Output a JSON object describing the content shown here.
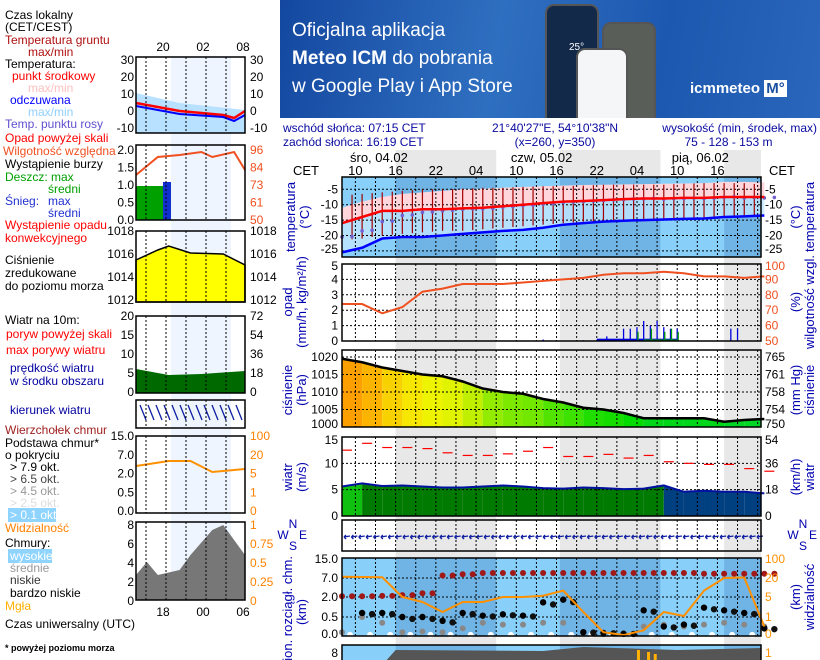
{
  "banner": {
    "line1": "Oficjalna aplikacja",
    "line2_bold": "Meteo ICM",
    "line2_rest": " do pobrania",
    "line3": "w Google Play i App Store",
    "logo_text": "icmmeteo",
    "logo_badge": "M°",
    "phone_temp": "25°"
  },
  "info": {
    "sunrise": "wschód słońca: 07:15 CET",
    "sunset": "zachód słońca: 16:19 CET",
    "coords": "21°40'27\"E, 54°10'38\"N",
    "grid": "(x=260,  y=350)",
    "elev_label": "wysokość (min, środek, max)",
    "elev_values": "75 - 128 - 153 m"
  },
  "time_axis": {
    "tz": "CET",
    "days": [
      "śro, 04.02",
      "czw, 05.02",
      "pią, 06.02"
    ],
    "hours": [
      "10",
      "16",
      "22",
      "04",
      "10",
      "16",
      "22",
      "04",
      "10",
      "16"
    ]
  },
  "axis_labels": {
    "temp": [
      "temperatura",
      "(°C)"
    ],
    "temp_r": [
      "(°C)",
      "temperatura"
    ],
    "precip": [
      "opad",
      "(mm/h, kg/m²/h)"
    ],
    "precip_r": [
      "(%)",
      "wilgotność wzgl."
    ],
    "press": [
      "ciśnienie",
      "(hPa)"
    ],
    "press_r": [
      "(mm Hg)",
      "ciśnienie"
    ],
    "wind": [
      "wiatr",
      "(m/s)"
    ],
    "wind_r": [
      "(km/h)",
      "wiatr"
    ],
    "cloud": [
      "pion. rozciągł. chm.",
      "(km)"
    ],
    "cloud_r": [
      "(km)",
      "widzialność"
    ],
    "compass": [
      "N",
      "W",
      "E",
      "S"
    ]
  },
  "ticks": {
    "temp": [
      "-5",
      "-10",
      "-15",
      "-20",
      "-25"
    ],
    "precip": [
      "5",
      "4",
      "3",
      "2",
      "1",
      "0"
    ],
    "humidity": [
      "100",
      "90",
      "80",
      "70",
      "60",
      "50"
    ],
    "press": [
      "1020",
      "1015",
      "1010",
      "1005",
      "1000"
    ],
    "press_mmhg": [
      "765",
      "761",
      "758",
      "754",
      "750"
    ],
    "wind": [
      "15",
      "10",
      "5",
      "0"
    ],
    "wind_kmh": [
      "54",
      "36",
      "18",
      "0"
    ],
    "cloud": [
      "15.0",
      "7.0",
      "2.0",
      "0.5",
      "0.0"
    ],
    "vis": [
      "100",
      "20",
      "5",
      "1",
      "0"
    ],
    "clouds": [
      "8"
    ],
    "clouds_r": [
      "1"
    ]
  },
  "colors": {
    "temp_mid": "#ff0000",
    "perceived": "#0000ff",
    "dew": "#7060d0",
    "ground": "#a00000",
    "humidity": "#f05020",
    "snow": "#0000e0",
    "rain": "#00a000",
    "pressure_line": "#000000",
    "gust": "#ff0000",
    "wind_fill": "#007a00",
    "wind_fill_late": "#004080",
    "cloud_top": "#a01818",
    "visibility": "#ff9000",
    "axis_label": "#0000b0"
  },
  "chart_data": {
    "type": "line",
    "x_hours_from": "śro, 04.02 08 CET",
    "x": [
      0,
      3,
      6,
      9,
      12,
      15,
      18,
      21,
      24,
      27,
      30,
      33,
      36,
      39,
      42,
      45,
      48,
      51,
      54,
      57,
      60,
      63
    ],
    "temperature": {
      "ylim": [
        -27,
        -1
      ],
      "mid": [
        -16,
        -14,
        -12,
        -12,
        -11.5,
        -11.5,
        -11.2,
        -11,
        -10.5,
        -10,
        -9.5,
        -9,
        -8.8,
        -8.5,
        -8.2,
        -8,
        -8,
        -7.8,
        -7.8,
        -7.5,
        -7.5,
        -7.5
      ],
      "max": [
        -11,
        -9,
        -7.5,
        -6.5,
        -6,
        -5.5,
        -5,
        -4.8,
        -4.5,
        -4.2,
        -4,
        -3.8,
        -3.6,
        -3.5,
        -3.4,
        -3.3,
        -3.2,
        -3.1,
        -3,
        -2.6,
        -2.6,
        -2.8
      ],
      "perceived": [
        -25.5,
        -24,
        -21,
        -20.5,
        -20.5,
        -20,
        -19.5,
        -19,
        -18.5,
        -18.2,
        -17.5,
        -16.5,
        -16,
        -15.5,
        -15.2,
        -15,
        -14.8,
        -14.6,
        -14.5,
        -14,
        -13.8,
        -13.5
      ],
      "dew": [
        -20.5,
        -18.5,
        -15.5,
        -13.5,
        -12.5,
        -12,
        -11.5,
        -11.3,
        -10.8,
        -10.3,
        -9.8,
        -9.3,
        -9,
        -8.6,
        -8.3,
        -8.1,
        -8.2,
        -8,
        -8,
        -7.6,
        -7.8,
        -7.8
      ],
      "ground_max": [
        -7,
        -6.5,
        -6,
        -5.5,
        -5,
        -5,
        -4.8,
        -4.5,
        -4.5,
        -4.2,
        -4,
        -4,
        -3.8,
        -3.5,
        -3.5,
        -3.5,
        -3.5,
        -3.2,
        -3,
        -3,
        -3,
        -3.5
      ],
      "ground_min": [
        -21.5,
        -21,
        -20,
        -19.5,
        -19,
        -18.5,
        -18.5,
        -18,
        -17.5,
        -17,
        -16.5,
        -16,
        -15.5,
        -15.5,
        -15,
        -15,
        -14.5,
        -14.5,
        -14.5,
        -14,
        -14,
        -14
      ]
    },
    "humidity": {
      "ylim": [
        50,
        100
      ],
      "values": [
        74,
        74,
        68,
        72,
        82,
        84,
        87,
        87,
        87,
        88,
        89,
        90,
        91,
        93,
        94,
        94,
        95,
        94,
        92,
        92,
        91,
        92
      ]
    },
    "precipitation": {
      "ylim": [
        0,
        5
      ],
      "snow": [
        [
          30,
          0.1
        ],
        [
          36,
          0.05
        ],
        [
          39.5,
          0.3
        ],
        [
          42,
          0.8
        ],
        [
          43,
          0.8
        ],
        [
          44,
          0.9
        ],
        [
          45,
          1.3
        ],
        [
          46,
          1.0
        ],
        [
          47,
          1.3
        ],
        [
          48,
          0.9
        ],
        [
          49,
          0.8
        ],
        [
          50,
          0.8
        ],
        [
          58,
          0.8
        ],
        [
          59,
          0.8
        ]
      ],
      "rain": [
        [
          44,
          0.6
        ],
        [
          46,
          0.8
        ],
        [
          48,
          0.6
        ],
        [
          49,
          0.8
        ],
        [
          50,
          0.6
        ]
      ]
    },
    "pressure": {
      "ylim": [
        1000,
        1022
      ],
      "values": [
        1019.5,
        1018.5,
        1017,
        1016,
        1015,
        1014.5,
        1013,
        1011,
        1010,
        1009.5,
        1008,
        1007,
        1005.5,
        1005,
        1004,
        1002.5,
        1002.5,
        1002.5,
        1002.5,
        1001.5,
        1002,
        1002.3
      ]
    },
    "wind": {
      "ylim": [
        0,
        15
      ],
      "speed": [
        5.6,
        6.2,
        5.7,
        5.8,
        5.6,
        5.4,
        5.4,
        5.6,
        5.8,
        5.6,
        5.3,
        5.2,
        5.4,
        5.3,
        5.1,
        5.2,
        5.8,
        4.6,
        4.8,
        4.6,
        4.6,
        4.3
      ],
      "gust": [
        12.5,
        13.8,
        13,
        13,
        12.8,
        12,
        11.5,
        11.5,
        11.8,
        12.3,
        13,
        11.3,
        11.3,
        11.7,
        11,
        11.5,
        10.3,
        10,
        9.8,
        9.8,
        9,
        8.5
      ]
    },
    "clouds": {
      "ylim": [
        0,
        15
      ],
      "top": [
        2.2,
        2.2,
        2.3,
        2.5,
        3,
        8,
        8.5,
        9,
        9,
        9,
        9,
        9,
        9,
        9,
        9,
        9,
        9,
        9,
        8.7,
        8.7,
        8.7,
        8.7
      ],
      "base_full": [
        null,
        0.8,
        0.8,
        0.5,
        0.5,
        0.4,
        0.8,
        0.6,
        0.7,
        0.6,
        1.6,
        1.8,
        0.1,
        0.08,
        0.06,
        1.0,
        0.25,
        0.3,
        1.2,
        1.0,
        0.8,
        0.2
      ],
      "base_partial": [
        0.1,
        0.5,
        0.35,
        0.1,
        0.12,
        0.1,
        0.2,
        0.35,
        0.3,
        0.3,
        0.35,
        0.35,
        0.08,
        0.05,
        0.05,
        0.25,
        0.3,
        0.25,
        0.3,
        0.35,
        0.3,
        0.25
      ],
      "visibility": [
        25,
        24,
        23,
        5,
        4,
        2,
        4,
        4,
        5,
        5,
        6,
        10,
        2,
        0.2,
        0.05,
        0.3,
        2,
        1.2,
        10,
        20,
        22,
        0.5
      ]
    }
  },
  "left": {
    "labels": [
      "Czas lokalny",
      "(CET/CEST)",
      "Temperatura gruntu",
      "max/min",
      "Temperatura:",
      "punkt środkowy",
      "max/min",
      "odczuwana",
      "max/min",
      "Temp. punktu rosy",
      "Opad powyżej skali",
      "Wilgotność względna",
      "Wystąpienie burzy",
      "Deszcz: max",
      "średni",
      "Śnieg:",
      "max",
      "średni",
      "Wystąpienie opadu",
      "konwekcyjnego",
      "Ciśnienie",
      "zredukowane",
      "do poziomu morza",
      "Wiatr na 10m:",
      "poryw powyżej skali",
      "max porywy wiatru",
      "prędkość wiatru",
      "w środku obszaru",
      "kierunek wiatru",
      "Wierzchołek chmur",
      "Podstawa chmur*",
      "o pokryciu",
      "> 7.9 okt.",
      "> 6.5 okt.",
      "> 4.5 okt.",
      "> 2.5 okt.",
      "> 0.1 okt.",
      "Widzialność",
      "Chmury:",
      "wysokie",
      "średnie",
      "niskie",
      "bardzo niskie",
      "Mgła",
      "Czas uniwersalny (UTC)",
      "* powyżej poziomu morza"
    ],
    "local_hours": [
      "20",
      "02",
      "08"
    ],
    "utc_hours": [
      "18",
      "00",
      "06"
    ],
    "ticks": {
      "temp": [
        "30",
        "20",
        "10",
        "0",
        "-10"
      ],
      "precip": [
        "2.0",
        "1.5",
        "1.0",
        "0.5",
        "0.0"
      ],
      "hum": [
        "96",
        "84",
        "73",
        "61",
        "50"
      ],
      "press": [
        "1018",
        "1016",
        "1014",
        "1012"
      ],
      "wind": [
        "20",
        "15",
        "10",
        "5",
        "0"
      ],
      "wind_r": [
        "72",
        "54",
        "36",
        "18",
        "0"
      ],
      "cloud": [
        "15.0",
        "7.0",
        "2.0",
        "0.5",
        "0.0"
      ],
      "vis": [
        "100",
        "20",
        "5",
        "1",
        "0"
      ],
      "clouds": [
        "8",
        "6",
        "4",
        "2",
        "0"
      ],
      "clouds_r": [
        "1",
        "0.75",
        "0.5",
        "0.25",
        "0"
      ]
    }
  }
}
